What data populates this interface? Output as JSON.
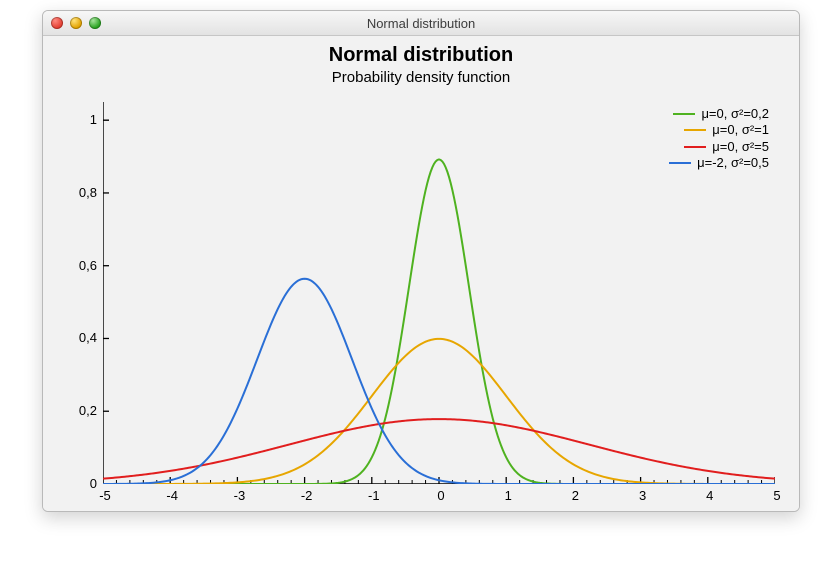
{
  "window": {
    "title": "Normal distribution"
  },
  "chart": {
    "type": "line",
    "title": "Normal distribution",
    "subtitle": "Probability density function",
    "title_fontsize": 20,
    "subtitle_fontsize": 15,
    "tick_fontsize": 13,
    "background_color": "#f2f2f2",
    "axis_color": "#000000",
    "line_width": 2,
    "xlim": [
      -5,
      5
    ],
    "ylim": [
      0,
      1.05
    ],
    "xtick_step": 1,
    "xtick_minor": 5,
    "ytick_step": 0.2,
    "ylabels": [
      "0",
      "0,2",
      "0,4",
      "0,6",
      "0,8",
      "1"
    ],
    "xlabels": [
      "-5",
      "-4",
      "-3",
      "-2",
      "-1",
      "0",
      "1",
      "2",
      "3",
      "4",
      "5"
    ],
    "series": [
      {
        "label": "μ=0, σ²=0,2",
        "color": "#4fb220",
        "mu": 0,
        "var": 0.2
      },
      {
        "label": "μ=0, σ²=1",
        "color": "#e7a600",
        "mu": 0,
        "var": 1
      },
      {
        "label": "μ=0, σ²=5",
        "color": "#e11e1e",
        "mu": 0,
        "var": 5
      },
      {
        "label": "μ=-2, σ²=0,5",
        "color": "#2a6fd6",
        "mu": -2,
        "var": 0.5
      }
    ]
  }
}
